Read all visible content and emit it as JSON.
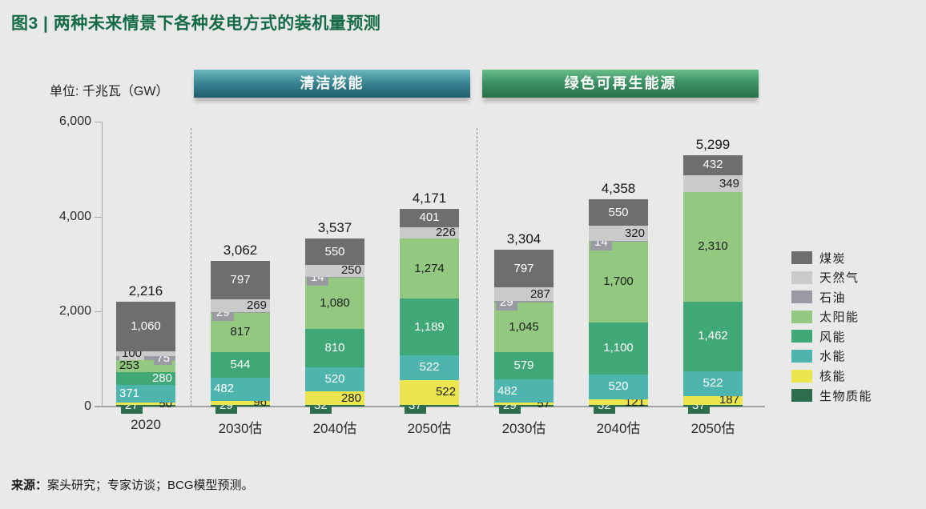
{
  "page": {
    "title": "图3 | 两种未来情景下各种发电方式的装机量预测",
    "unit_label": "单位: 千兆瓦（GW）",
    "source_prefix": "来源：",
    "source_text": "案头研究；专家访谈；BCG模型预测。"
  },
  "scenario_banners": [
    {
      "label": "清洁核能",
      "color_top": "#6db9c0",
      "color_bottom": "#205d6c"
    },
    {
      "label": "绿色可再生能源",
      "color_top": "#68bd88",
      "color_bottom": "#2a6f4a"
    }
  ],
  "chart_data": {
    "type": "bar",
    "subtype": "stacked",
    "title": "两种未来情景下各种发电方式的装机量预测",
    "unit": "GW",
    "ylabel": "千兆瓦（GW）",
    "ylim": [
      0,
      6000
    ],
    "yticks": [
      0,
      2000,
      4000,
      6000
    ],
    "grid": false,
    "legend_position": "right",
    "series_legend_order": [
      {
        "key": "coal",
        "label": "煤炭",
        "color": "#6e6e6e"
      },
      {
        "key": "gas",
        "label": "天然气",
        "color": "#cacaca"
      },
      {
        "key": "oil",
        "label": "石油",
        "color": "#9a9aa2"
      },
      {
        "key": "solar",
        "label": "太阳能",
        "color": "#92c87f"
      },
      {
        "key": "wind",
        "label": "风能",
        "color": "#3fa876"
      },
      {
        "key": "hydro",
        "label": "水能",
        "color": "#4db5ae"
      },
      {
        "key": "nuclear",
        "label": "核能",
        "color": "#ece64e"
      },
      {
        "key": "biomass",
        "label": "生物质能",
        "color": "#2d6e4e"
      }
    ],
    "stack_order_bottom_to_top": [
      "biomass",
      "nuclear",
      "hydro",
      "wind",
      "solar",
      "oil",
      "gas",
      "coal"
    ],
    "groups": [
      {
        "banner": null,
        "bars": [
          {
            "category": "2020",
            "total": 2216,
            "values": {
              "biomass": 27,
              "nuclear": 50,
              "hydro": 371,
              "wind": 280,
              "solar": 253,
              "oil": 75,
              "gas": 100,
              "coal": 1060
            }
          }
        ]
      },
      {
        "banner": "清洁核能",
        "bars": [
          {
            "category": "2030估",
            "total": 3062,
            "values": {
              "biomass": 29,
              "nuclear": 96,
              "hydro": 482,
              "wind": 544,
              "solar": 817,
              "oil": 29,
              "gas": 269,
              "coal": 797
            }
          },
          {
            "category": "2040估",
            "total": 3537,
            "values": {
              "biomass": 32,
              "nuclear": 280,
              "hydro": 520,
              "wind": 810,
              "solar": 1080,
              "oil": 14,
              "gas": 250,
              "coal": 550
            }
          },
          {
            "category": "2050估",
            "total": 4171,
            "values": {
              "biomass": 37,
              "nuclear": 522,
              "hydro": 522,
              "wind": 1189,
              "solar": 1274,
              "oil": 0,
              "gas": 226,
              "coal": 401
            }
          }
        ]
      },
      {
        "banner": "绿色可再生能源",
        "bars": [
          {
            "category": "2030估",
            "total": 3304,
            "values": {
              "biomass": 29,
              "nuclear": 57,
              "hydro": 482,
              "wind": 579,
              "solar": 1045,
              "oil": 29,
              "gas": 287,
              "coal": 797
            }
          },
          {
            "category": "2040估",
            "total": 4358,
            "values": {
              "biomass": 32,
              "nuclear": 121,
              "hydro": 520,
              "wind": 1100,
              "solar": 1700,
              "oil": 14,
              "gas": 320,
              "coal": 550
            }
          },
          {
            "category": "2050估",
            "total": 5299,
            "values": {
              "biomass": 37,
              "nuclear": 187,
              "hydro": 522,
              "wind": 1462,
              "solar": 2310,
              "oil": 0,
              "gas": 349,
              "coal": 432
            }
          }
        ]
      }
    ]
  }
}
